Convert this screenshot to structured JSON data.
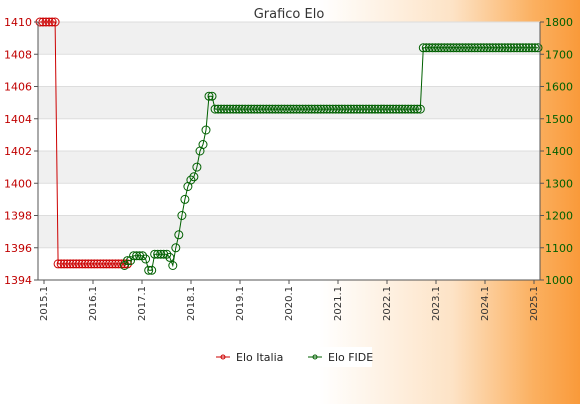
{
  "chart_data": {
    "type": "line",
    "title": "Grafico Elo",
    "xlabel": "",
    "ylabel": "",
    "grid": true,
    "legend_position": "bottom-center",
    "x_tick_labels": [
      "2015.1",
      "2016.1",
      "2017.1",
      "2018.1",
      "2019.1",
      "2020.1",
      "2021.1",
      "2022.1",
      "2023.1",
      "2024.1",
      "2025.1"
    ],
    "y_left": {
      "min": 1394,
      "max": 1410,
      "ticks": [
        1394,
        1396,
        1398,
        1400,
        1402,
        1404,
        1406,
        1408,
        1410
      ],
      "color": "#c00000"
    },
    "y_right": {
      "min": 1000,
      "max": 1800,
      "ticks": [
        1000,
        1100,
        1200,
        1300,
        1400,
        1500,
        1600,
        1700,
        1800
      ],
      "color": "#006000"
    },
    "series": [
      {
        "name": "Elo Italia",
        "color": "#cc0000",
        "axis": "left",
        "start_index": 0,
        "values": [
          1410,
          1410,
          1410,
          1410,
          1410,
          1410,
          1395,
          1395,
          1395,
          1395,
          1395,
          1395,
          1395,
          1395,
          1395,
          1395,
          1395,
          1395,
          1395,
          1395,
          1395,
          1395,
          1395,
          1395,
          1395,
          1395,
          1395,
          1395,
          1395,
          1395
        ]
      },
      {
        "name": "Elo FIDE",
        "color": "#006000",
        "axis": "right",
        "start_index": 28,
        "values": [
          1045,
          1060,
          1060,
          1075,
          1075,
          1075,
          1075,
          1065,
          1030,
          1030,
          1080,
          1080,
          1080,
          1080,
          1080,
          1070,
          1045,
          1100,
          1140,
          1200,
          1250,
          1290,
          1310,
          1320,
          1350,
          1400,
          1420,
          1465,
          1570,
          1570,
          1530,
          1530,
          1530,
          1530,
          1530,
          1530,
          1530,
          1530,
          1530,
          1530,
          1530,
          1530,
          1530,
          1530,
          1530,
          1530,
          1530,
          1530,
          1530,
          1530,
          1530,
          1530,
          1530,
          1530,
          1530,
          1530,
          1530,
          1530,
          1530,
          1530,
          1530,
          1530,
          1530,
          1530,
          1530,
          1530,
          1530,
          1530,
          1530,
          1530,
          1530,
          1530,
          1530,
          1530,
          1530,
          1530,
          1530,
          1530,
          1530,
          1530,
          1530,
          1530,
          1530,
          1530,
          1530,
          1530,
          1530,
          1530,
          1530,
          1530,
          1530,
          1530,
          1530,
          1530,
          1530,
          1530,
          1530,
          1530,
          1530,
          1720,
          1720,
          1720,
          1720,
          1720,
          1720,
          1720,
          1720,
          1720,
          1720,
          1720,
          1720,
          1720,
          1720,
          1720,
          1720,
          1720,
          1720,
          1720,
          1720,
          1720,
          1720,
          1720,
          1720,
          1720,
          1720,
          1720,
          1720,
          1720,
          1720,
          1720,
          1720,
          1720,
          1720,
          1720,
          1720,
          1720,
          1720,
          1720
        ]
      }
    ]
  }
}
